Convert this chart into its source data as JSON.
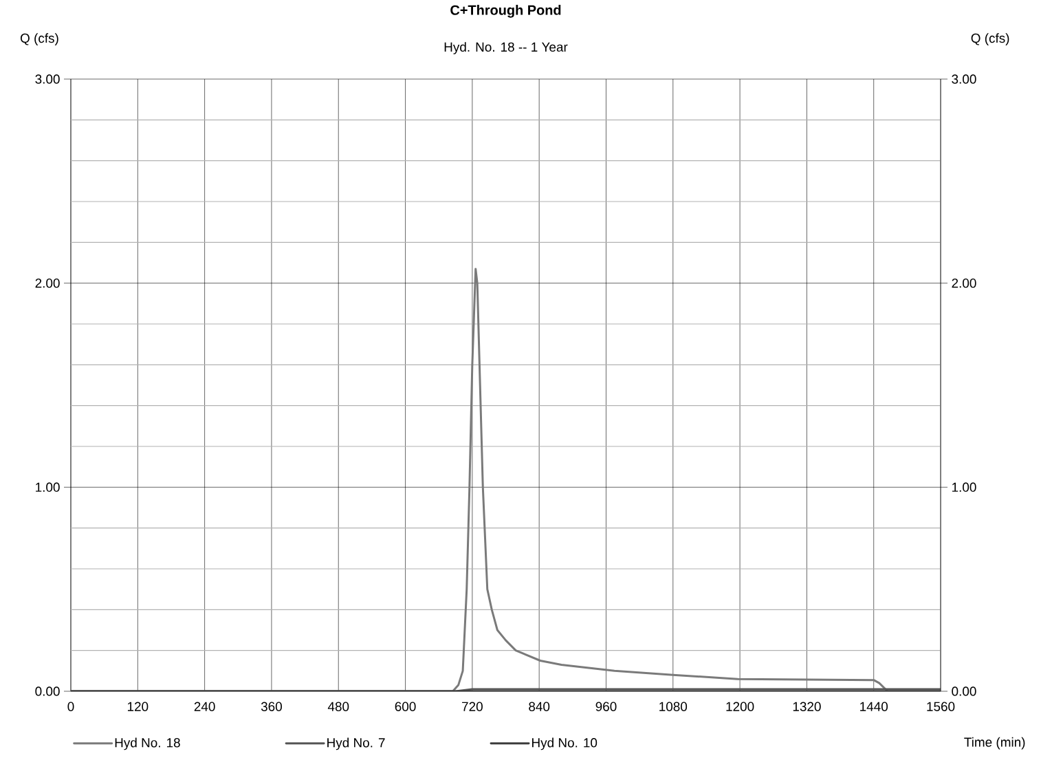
{
  "chart_data": {
    "type": "line",
    "title": "C+Through Pond",
    "subtitle": "Hyd. No. 18 -- 1 Year",
    "xlabel": "Time (min)",
    "ylabel": "Q (cfs)",
    "y2label": "Q (cfs)",
    "xlim": [
      0,
      1560
    ],
    "xticks": [
      0,
      120,
      240,
      360,
      480,
      600,
      720,
      840,
      960,
      1080,
      1200,
      1320,
      1440,
      1560
    ],
    "ylim": [
      0,
      3
    ],
    "yticks": [
      {
        "value": 0,
        "label": "0.00"
      },
      {
        "value": 0.2,
        "label": null
      },
      {
        "value": 0.4,
        "label": null
      },
      {
        "value": 0.6,
        "label": null
      },
      {
        "value": 0.8,
        "label": null
      },
      {
        "value": 1,
        "label": "1.00"
      },
      {
        "value": 1.2,
        "label": null
      },
      {
        "value": 1.4,
        "label": null
      },
      {
        "value": 1.6,
        "label": null
      },
      {
        "value": 1.8,
        "label": null
      },
      {
        "value": 2,
        "label": "2.00"
      },
      {
        "value": 2.2,
        "label": null
      },
      {
        "value": 2.4,
        "label": null
      },
      {
        "value": 2.6,
        "label": null
      },
      {
        "value": 2.8,
        "label": null
      },
      {
        "value": 3,
        "label": "3.00"
      }
    ],
    "y2lim": [
      0,
      3
    ],
    "y2ticks": [
      {
        "value": 0,
        "label": "0.00"
      },
      {
        "value": 1,
        "label": "1.00"
      },
      {
        "value": 2,
        "label": "2.00"
      },
      {
        "value": 3,
        "label": "3.00"
      }
    ],
    "grid": true,
    "legend": "bottom",
    "marker": "none",
    "line_style": "solid",
    "series": [
      {
        "name": "Hyd No. 18",
        "color": "#7a7a7a",
        "x": [
          0,
          600,
          685,
          695,
          703,
          710,
          715,
          720,
          726,
          729,
          734,
          739,
          747,
          755,
          765,
          780,
          798,
          842,
          880,
          975,
          1080,
          1196,
          1320,
          1440,
          1450,
          1465,
          1560
        ],
        "values": [
          0,
          0,
          0,
          0.03,
          0.1,
          0.5,
          1.0,
          1.6,
          2.07,
          2.0,
          1.5,
          1.0,
          0.5,
          0.4,
          0.3,
          0.25,
          0.2,
          0.15,
          0.13,
          0.1,
          0.08,
          0.06,
          0.057,
          0.055,
          0.04,
          0,
          0
        ]
      },
      {
        "name": "Hyd No. 7",
        "color": "#555555",
        "x": [
          0,
          690,
          720,
          840,
          1560
        ],
        "values": [
          0,
          0,
          0.01,
          0.01,
          0.01
        ]
      },
      {
        "name": "Hyd No. 10",
        "color": "#3c3c3c",
        "x": [
          0,
          1560
        ],
        "values": [
          0,
          0
        ]
      }
    ]
  }
}
